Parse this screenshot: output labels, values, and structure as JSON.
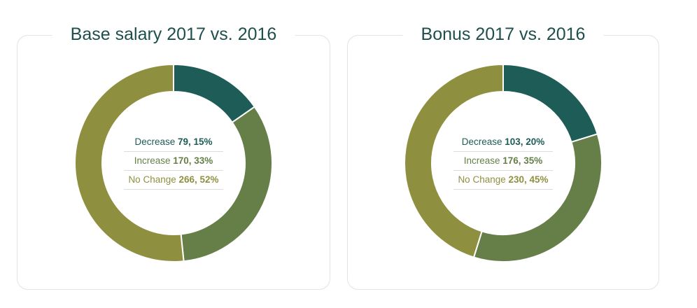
{
  "colors": {
    "decrease": "#1e5c58",
    "increase": "#667f48",
    "no_change": "#8f903f",
    "title": "#1d4f4c"
  },
  "chart_data": [
    {
      "type": "pie",
      "variant": "donut",
      "title": "Base salary 2017 vs. 2016",
      "slices": [
        {
          "label": "Decrease",
          "count": 79,
          "percent": 15,
          "value_label": "79, 15%"
        },
        {
          "label": "Increase",
          "count": 170,
          "percent": 33,
          "value_label": "170, 33%"
        },
        {
          "label": "No Change",
          "count": 266,
          "percent": 52,
          "value_label": "266, 52%"
        }
      ]
    },
    {
      "type": "pie",
      "variant": "donut",
      "title": "Bonus 2017 vs. 2016",
      "slices": [
        {
          "label": "Decrease",
          "count": 103,
          "percent": 20,
          "value_label": "103, 20%"
        },
        {
          "label": "Increase",
          "count": 176,
          "percent": 35,
          "value_label": "176, 35%"
        },
        {
          "label": "No Change",
          "count": 230,
          "percent": 45,
          "value_label": "230, 45%"
        }
      ]
    }
  ]
}
